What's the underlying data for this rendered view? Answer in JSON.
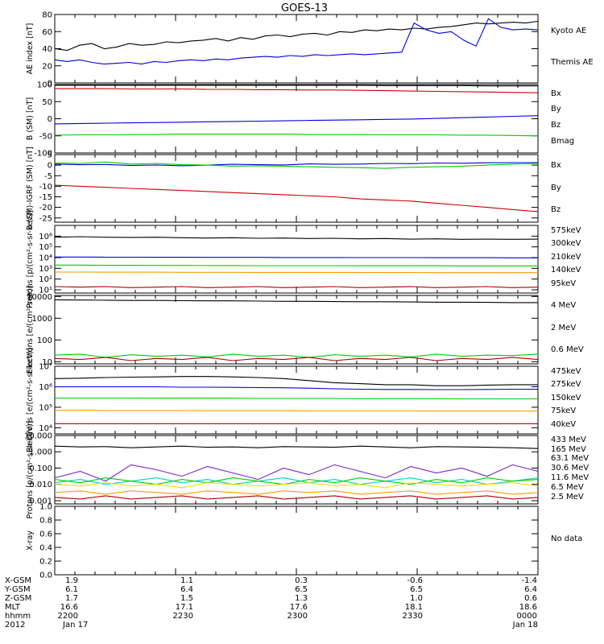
{
  "title": "GOES-13",
  "colors": {
    "black": "#000000",
    "blue": "#0000dd",
    "green": "#00cc00",
    "red": "#cc0000",
    "orange": "#ff9900",
    "yellow": "#e6e600",
    "cyan": "#00cccc",
    "purple": "#7722cc",
    "darkred": "#aa0000"
  },
  "chart_data": [
    {
      "type": "line",
      "ylabel": "AE index [nT]",
      "ylim": [
        0,
        80
      ],
      "yticks": [
        "0",
        "20",
        "40",
        "60",
        "80"
      ],
      "legend": [
        "Kyoto AE",
        "Themis AE"
      ],
      "legend_colors": [
        "blue",
        "black"
      ],
      "series": [
        {
          "name": "Themis AE",
          "color": "black",
          "values": [
            40,
            38,
            44,
            46,
            40,
            42,
            46,
            44,
            45,
            48,
            47,
            49,
            50,
            52,
            49,
            53,
            51,
            55,
            56,
            54,
            57,
            58,
            56,
            60,
            59,
            62,
            61,
            63,
            62,
            64,
            63,
            65,
            66,
            68,
            70,
            69,
            70,
            71,
            70,
            72
          ]
        },
        {
          "name": "Kyoto AE",
          "color": "blue",
          "values": [
            27,
            25,
            27,
            24,
            22,
            23,
            24,
            22,
            25,
            24,
            26,
            27,
            26,
            28,
            27,
            29,
            30,
            31,
            30,
            32,
            31,
            33,
            32,
            33,
            34,
            33,
            34,
            35,
            36,
            70,
            62,
            58,
            60,
            50,
            43,
            75,
            65,
            62,
            63,
            62
          ]
        }
      ]
    },
    {
      "type": "line",
      "ylabel": "B (SM) [nT]",
      "ylim": [
        -100,
        100
      ],
      "yticks": [
        "-100",
        "-50",
        "0",
        "50",
        "100"
      ],
      "legend": [
        "Bx",
        "By",
        "Bz",
        "Bmag"
      ],
      "legend_colors": [
        "blue",
        "green",
        "red",
        "black"
      ],
      "series": [
        {
          "name": "Bmag",
          "color": "black",
          "values": [
            100,
            100,
            100,
            99,
            99,
            99,
            99,
            99,
            98,
            98,
            98,
            98,
            98,
            97,
            97,
            97,
            97,
            96,
            96,
            96
          ]
        },
        {
          "name": "Bz",
          "color": "red",
          "values": [
            88,
            88,
            88,
            87,
            87,
            87,
            86,
            86,
            85,
            85,
            84,
            84,
            83,
            82,
            81,
            80,
            79,
            78,
            77,
            76
          ]
        },
        {
          "name": "Bx",
          "color": "blue",
          "values": [
            -15,
            -14,
            -13,
            -12,
            -11,
            -10,
            -9,
            -8,
            -7,
            -6,
            -5,
            -4,
            -3,
            -2,
            -1,
            1,
            3,
            5,
            7,
            9
          ]
        },
        {
          "name": "By",
          "color": "green",
          "values": [
            -48,
            -47,
            -47,
            -46,
            -46,
            -45,
            -45,
            -45,
            -45,
            -45,
            -46,
            -46,
            -46,
            -47,
            -47,
            -47,
            -48,
            -48,
            -49,
            -50
          ]
        }
      ]
    },
    {
      "type": "line",
      "ylabel": "B (SM)-IGRF (SM) [nT]",
      "ylim": [
        -27,
        5
      ],
      "yticks": [
        "-25",
        "-20",
        "-15",
        "-10",
        "-5",
        "0",
        "5"
      ],
      "legend": [
        "Bx",
        "By",
        "Bz"
      ],
      "legend_colors": [
        "blue",
        "green",
        "red"
      ],
      "series": [
        {
          "name": "Bx",
          "color": "blue",
          "values": [
            0.5,
            0.2,
            0.3,
            -0.2,
            0.1,
            -0.3,
            0,
            0.4,
            0.2,
            0.1,
            0.6,
            0.4,
            0.5,
            0.8,
            0.7,
            1,
            0.9,
            1.1,
            1.2,
            1.2
          ]
        },
        {
          "name": "By",
          "color": "green",
          "values": [
            1,
            0.8,
            1.5,
            0.5,
            0.8,
            0.2,
            0,
            -0.5,
            -0.3,
            -0.5,
            -0.8,
            -1,
            -1.2,
            -1.5,
            -1,
            -0.8,
            -0.5,
            0,
            0.5,
            0.8
          ]
        },
        {
          "name": "Bz",
          "color": "red",
          "values": [
            -9.5,
            -10,
            -10.5,
            -11,
            -11.5,
            -12,
            -12.5,
            -13,
            -13.5,
            -14,
            -14.5,
            -15,
            -16,
            -16.5,
            -17,
            -18,
            -19,
            -20,
            -21,
            -22
          ]
        }
      ]
    },
    {
      "type": "line",
      "ylabel": "Protons [p/(cm²-s-sr-keV)]",
      "log": true,
      "ylim": [
        0.7,
        7
      ],
      "yticks": [
        "10¹",
        "10²",
        "10³",
        "10⁴",
        "10⁵",
        "10⁶"
      ],
      "legend": [
        "575keV",
        "300keV",
        "210keV",
        "140keV",
        "95keV"
      ],
      "legend_colors": [
        "darkred",
        "orange",
        "green",
        "blue",
        "black"
      ],
      "series": [
        {
          "name": "95keV",
          "color": "black",
          "values": [
            5.9,
            5.95,
            5.9,
            5.88,
            5.9,
            5.85,
            5.82,
            5.85,
            5.8,
            5.82,
            5.78,
            5.8,
            5.75,
            5.78,
            5.72,
            5.75,
            5.7,
            5.72,
            5.7,
            5.72
          ]
        },
        {
          "name": "140keV",
          "color": "blue",
          "values": [
            4.05,
            4.05,
            4.04,
            4.04,
            4.03,
            4.03,
            4.02,
            4.02,
            4.02,
            4.01,
            4.01,
            4.01,
            4.0,
            4.0,
            4.0,
            3.99,
            3.99,
            3.99,
            3.98,
            3.98
          ]
        },
        {
          "name": "210keV",
          "color": "green",
          "values": [
            3.3,
            3.3,
            3.28,
            3.28,
            3.27,
            3.27,
            3.26,
            3.26,
            3.25,
            3.25,
            3.25,
            3.25,
            3.24,
            3.24,
            3.24,
            3.24,
            3.23,
            3.23,
            3.23,
            3.23
          ]
        },
        {
          "name": "300keV",
          "color": "orange",
          "values": [
            2.65,
            2.65,
            2.64,
            2.64,
            2.64,
            2.63,
            2.63,
            2.63,
            2.62,
            2.62,
            2.62,
            2.62,
            2.61,
            2.61,
            2.61,
            2.6,
            2.6,
            2.6,
            2.6,
            2.6
          ]
        },
        {
          "name": "575keV",
          "color": "darkred",
          "values": [
            1.3,
            1.25,
            1.3,
            1.2,
            1.25,
            1.3,
            1.2,
            1.25,
            1.3,
            1.2,
            1.25,
            1.3,
            1.2,
            1.25,
            1.3,
            1.2,
            1.25,
            1.3,
            1.2,
            1.25
          ]
        }
      ]
    },
    {
      "type": "line",
      "ylabel": "Electrons [e/(cm²-s-sr)]",
      "log": true,
      "ylim": [
        0.9,
        4.05
      ],
      "yticks": [
        "10",
        "100",
        "1000",
        "10000"
      ],
      "legend": [
        "4 MeV",
        "2 MeV",
        "0.6 MeV"
      ],
      "legend_colors": [
        "darkred",
        "green",
        "black"
      ],
      "series": [
        {
          "name": "0.6 MeV",
          "color": "black",
          "values": [
            3.85,
            3.84,
            3.83,
            3.82,
            3.82,
            3.81,
            3.8,
            3.8,
            3.79,
            3.78,
            3.78,
            3.77,
            3.76,
            3.76,
            3.75,
            3.74,
            3.74,
            3.73,
            3.72,
            3.72
          ]
        },
        {
          "name": "2 MeV",
          "color": "green",
          "values": [
            1.3,
            1.35,
            1.2,
            1.32,
            1.25,
            1.3,
            1.22,
            1.35,
            1.25,
            1.3,
            1.2,
            1.32,
            1.25,
            1.3,
            1.22,
            1.35,
            1.25,
            1.3,
            1.28,
            1.35
          ]
        },
        {
          "name": "4 MeV",
          "color": "darkred",
          "values": [
            1.15,
            1.1,
            1.2,
            1.05,
            1.15,
            1.1,
            1.2,
            1.05,
            1.15,
            1.1,
            1.2,
            1.05,
            1.15,
            1.1,
            1.2,
            1.05,
            1.15,
            1.1,
            1.2,
            1.1
          ]
        }
      ]
    },
    {
      "type": "line",
      "ylabel": "Electrons [e/(cm²-s-sr-keV)]",
      "log": true,
      "ylim": [
        3.7,
        7
      ],
      "yticks": [
        "10⁴",
        "10⁵",
        "10⁶",
        "10⁷"
      ],
      "legend": [
        "475keV",
        "275keV",
        "150keV",
        "75keV",
        "40keV"
      ],
      "legend_colors": [
        "darkred",
        "orange",
        "green",
        "blue",
        "black"
      ],
      "series": [
        {
          "name": "40keV",
          "color": "black",
          "values": [
            6.4,
            6.42,
            6.45,
            6.47,
            6.48,
            6.5,
            6.5,
            6.48,
            6.45,
            6.4,
            6.3,
            6.2,
            6.15,
            6.1,
            6.1,
            6.05,
            6.05,
            6.08,
            6.1,
            6.1
          ]
        },
        {
          "name": "75keV",
          "color": "blue",
          "values": [
            6.0,
            6.0,
            6.0,
            6.0,
            6.0,
            5.98,
            5.98,
            5.97,
            5.96,
            5.95,
            5.93,
            5.9,
            5.88,
            5.87,
            5.87,
            5.86,
            5.86,
            5.87,
            5.88,
            5.88
          ]
        },
        {
          "name": "150keV",
          "color": "green",
          "values": [
            5.45,
            5.45,
            5.45,
            5.45,
            5.44,
            5.44,
            5.44,
            5.44,
            5.43,
            5.43,
            5.43,
            5.43,
            5.42,
            5.42,
            5.42,
            5.42,
            5.41,
            5.41,
            5.41,
            5.41
          ]
        },
        {
          "name": "275keV",
          "color": "orange",
          "values": [
            4.85,
            4.85,
            4.84,
            4.84,
            4.84,
            4.84,
            4.83,
            4.83,
            4.83,
            4.83,
            4.82,
            4.82,
            4.82,
            4.82,
            4.82,
            4.81,
            4.81,
            4.81,
            4.81,
            4.81
          ]
        },
        {
          "name": "475keV",
          "color": "darkred",
          "values": [
            4.2,
            4.2,
            4.2,
            4.2,
            4.2,
            4.2,
            4.2,
            4.2,
            4.2,
            4.2,
            4.2,
            4.2,
            4.2,
            4.2,
            4.2,
            4.2,
            4.2,
            4.2,
            4.2,
            4.2
          ]
        }
      ]
    },
    {
      "type": "line",
      "ylabel": "Protons [p/(cm²-s-sr-keV)]",
      "log": true,
      "ylim": [
        -3.2,
        1
      ],
      "yticks": [
        "0.001",
        "0.010",
        "0.100",
        "1.000",
        "10.000"
      ],
      "legend": [
        "433 MeV",
        "165 MeV",
        "63.1 MeV",
        "30.6 MeV",
        "11.6 MeV",
        "6.5 MeV",
        "2.5 MeV"
      ],
      "legend_colors": [
        "darkred",
        "orange",
        "yellow",
        "green",
        "cyan",
        "purple",
        "black"
      ],
      "series": [
        {
          "name": "2.5 MeV",
          "color": "black",
          "values": [
            0.35,
            0.3,
            0.32,
            0.25,
            0.3,
            0.35,
            0.28,
            0.3,
            0.25,
            0.32,
            0.3,
            0.28,
            0.35,
            0.3,
            0.25,
            0.32,
            0.3,
            0.28,
            0.25,
            0.2
          ]
        },
        {
          "name": "6.5 MeV",
          "color": "purple",
          "values": [
            -1.6,
            -1.2,
            -1.8,
            -0.8,
            -1.1,
            -1.5,
            -0.9,
            -1.3,
            -1.7,
            -1.0,
            -1.4,
            -0.8,
            -1.2,
            -1.6,
            -0.9,
            -1.3,
            -1.0,
            -1.5,
            -0.8,
            -1.2
          ]
        },
        {
          "name": "11.6 MeV",
          "color": "cyan",
          "values": [
            -1.9,
            -1.7,
            -2.0,
            -1.8,
            -1.6,
            -1.9,
            -1.7,
            -2.0,
            -1.8,
            -1.6,
            -1.9,
            -1.7,
            -2.0,
            -1.8,
            -1.6,
            -1.9,
            -1.7,
            -2.0,
            -1.8,
            -1.6
          ]
        },
        {
          "name": "30.6 MeV",
          "color": "green",
          "values": [
            -1.7,
            -1.9,
            -1.6,
            -1.8,
            -2.0,
            -1.7,
            -1.9,
            -1.6,
            -1.8,
            -2.0,
            -1.7,
            -1.9,
            -1.6,
            -1.8,
            -2.0,
            -1.7,
            -1.9,
            -1.6,
            -1.8,
            -1.7
          ]
        },
        {
          "name": "63.1 MeV",
          "color": "yellow",
          "values": [
            -2.0,
            -2.1,
            -1.9,
            -2.1,
            -2.0,
            -2.2,
            -1.9,
            -2.0,
            -2.1,
            -2.0,
            -1.9,
            -2.1,
            -2.0,
            -2.2,
            -1.9,
            -2.0,
            -2.1,
            -2.0,
            -1.9,
            -2.1
          ]
        },
        {
          "name": "165 MeV",
          "color": "orange",
          "values": [
            -2.5,
            -2.4,
            -2.6,
            -2.4,
            -2.5,
            -2.6,
            -2.4,
            -2.5,
            -2.6,
            -2.4,
            -2.5,
            -2.4,
            -2.6,
            -2.5,
            -2.4,
            -2.6,
            -2.5,
            -2.4,
            -2.6,
            -2.5
          ]
        },
        {
          "name": "433 MeV",
          "color": "darkred",
          "values": [
            -2.8,
            -2.9,
            -2.7,
            -2.9,
            -2.8,
            -2.7,
            -2.9,
            -2.8,
            -2.7,
            -2.9,
            -2.8,
            -2.7,
            -2.9,
            -2.8,
            -2.7,
            -2.9,
            -2.8,
            -2.7,
            -2.9,
            -2.8
          ]
        }
      ]
    },
    {
      "type": "line",
      "ylabel": "X-ray",
      "ylim": [
        0,
        1
      ],
      "yticks": [
        "0.0",
        "0.2",
        "0.4",
        "0.6",
        "0.8",
        "1.0"
      ],
      "legend": [
        "No data"
      ],
      "legend_colors": [
        "black"
      ],
      "series": []
    }
  ],
  "ephemeris": {
    "row_labels": [
      "X-GSM",
      "Y-GSM",
      "Z-GSM",
      "MLT",
      "hhmm",
      "2012"
    ],
    "columns": [
      [
        "1.9",
        "6.1",
        "1.7",
        "16.6",
        "2200",
        "Jan 17"
      ],
      [
        "1.1",
        "6.4",
        "1.5",
        "17.1",
        "2230",
        ""
      ],
      [
        "0.3",
        "6.5",
        "1.3",
        "17.6",
        "2300",
        ""
      ],
      [
        "-0.6",
        "6.5",
        "1.0",
        "18.1",
        "2330",
        ""
      ],
      [
        "-1.4",
        "6.4",
        "0.6",
        "18.6",
        "0000",
        "Jan 18"
      ]
    ]
  }
}
